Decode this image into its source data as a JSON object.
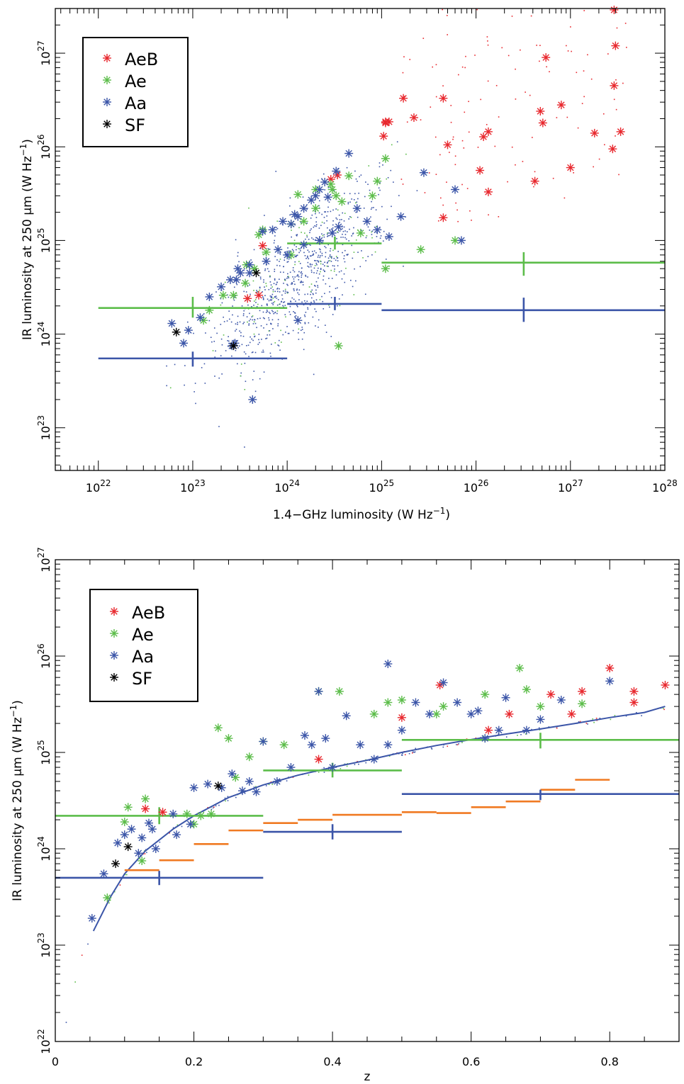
{
  "chart_data": [
    {
      "type": "scatter",
      "panel": "top",
      "xlabel": "1.4−GHz luminosity (W Hz",
      "xlabel_sup": "−1",
      "xlabel_end": ")",
      "ylabel": "IR luminosity at 250 μm (W Hz",
      "ylabel_sup": "−1",
      "ylabel_end": ")",
      "x_scale": "log",
      "y_scale": "log",
      "xlim": [
        3.5e+21,
        1e+28
      ],
      "ylim": [
        3.5e+22,
        3e+27
      ],
      "x_ticks": [
        {
          "base": "10",
          "exp": "22",
          "v": 1e+22
        },
        {
          "base": "10",
          "exp": "23",
          "v": 1e+23
        },
        {
          "base": "10",
          "exp": "24",
          "v": 1e+24
        },
        {
          "base": "10",
          "exp": "25",
          "v": 1e+25
        },
        {
          "base": "10",
          "exp": "26",
          "v": 1e+26
        },
        {
          "base": "10",
          "exp": "27",
          "v": 1e+27
        },
        {
          "base": "10",
          "exp": "28",
          "v": 1e+28
        }
      ],
      "y_ticks": [
        {
          "base": "10",
          "exp": "23",
          "v": 1e+23
        },
        {
          "base": "10",
          "exp": "24",
          "v": 1e+24
        },
        {
          "base": "10",
          "exp": "25",
          "v": 1e+25
        },
        {
          "base": "10",
          "exp": "26",
          "v": 1e+26
        },
        {
          "base": "10",
          "exp": "27",
          "v": 1e+27
        }
      ],
      "legend_position": "top-left",
      "legend": [
        {
          "label": "AeB",
          "color": "#e8282e"
        },
        {
          "label": "Ae",
          "color": "#5cbd4a"
        },
        {
          "label": "Aa",
          "color": "#3b55a8"
        },
        {
          "label": "SF",
          "color": "#000000"
        }
      ],
      "series": [
        {
          "name": "AeB",
          "color": "#e8282e",
          "x": [
            2.9e+27,
            3e+27,
            5.5e+26,
            2.9e+27,
            1.7e+25,
            4.5e+25,
            1.2e+25,
            1.1e+25,
            2.2e+25,
            1.1e+25,
            4.8e+26,
            8e+26,
            1.35e+26,
            1.8e+27,
            5.1e+26,
            3.4e+27,
            5e+25,
            1.2e+26,
            1.05e+25,
            2.8e+27,
            2.9e+24,
            3.4e+24,
            1.1e+26,
            1e+27,
            4.2e+26,
            1.35e+26,
            4.5e+25,
            5.5e+23,
            3.8e+23,
            5e+23
          ],
          "y": [
            2.9e+27,
            1.2e+27,
            9e+26,
            4.5e+26,
            3.3e+26,
            3.3e+26,
            1.85e+26,
            1.85e+26,
            2.05e+26,
            1.8e+26,
            2.4e+26,
            2.8e+26,
            1.45e+26,
            1.4e+26,
            1.8e+26,
            1.45e+26,
            1.05e+26,
            1.28e+26,
            1.3e+26,
            9.5e+25,
            4.5e+25,
            5e+25,
            5.6e+25,
            6e+25,
            4.3e+25,
            3.3e+25,
            1.75e+25,
            8.8e+24,
            2.4e+24,
            2.6e+24
          ]
        },
        {
          "name": "Ae",
          "color": "#5cbd4a",
          "x": [
            1.1e+25,
            9e+24,
            4.5e+24,
            3.3e+24,
            2.9e+24,
            1.3e+24,
            2e+24,
            1.1e+25,
            3e+24,
            3.8e+24,
            8e+24,
            6e+24,
            2.6e+25,
            6e+25,
            2e+24,
            1.5e+24,
            1.1e+24,
            5e+23,
            3.6e+23,
            4.5e+23,
            2.7e+23,
            1.1e+24,
            5.5e+23,
            6e+23,
            1.3e+23,
            3.5e+24,
            2.1e+23,
            3.7e+23,
            1.5e+23
          ],
          "y": [
            7.5e+25,
            4.3e+25,
            4.9e+25,
            3e+25,
            4e+25,
            3.1e+25,
            3.5e+25,
            5e+24,
            3.5e+25,
            2.6e+25,
            3e+25,
            1.2e+25,
            8e+24,
            1e+25,
            2.2e+25,
            1.6e+25,
            1.5e+25,
            1.15e+25,
            3.5e+24,
            5e+24,
            2.6e+24,
            7e+24,
            1.3e+25,
            7.5e+24,
            1.4e+24,
            7.5e+23,
            2.6e+24,
            5.5e+24,
            1.8e+24
          ]
        },
        {
          "name": "Aa",
          "color": "#3b55a8",
          "x": [
            4.5e+24,
            3.3e+24,
            2.5e+24,
            2.2e+24,
            2e+24,
            1.8e+24,
            1.5e+24,
            1.3e+24,
            1.1e+24,
            3e+24,
            5.5e+24,
            7e+24,
            9e+24,
            1.6e+25,
            2.8e+25,
            6e+25,
            7e+25,
            1.2e+25,
            8e+23,
            6e+23,
            4e+23,
            3e+23,
            2.5e+23,
            2e+23,
            1.5e+23,
            1.2e+23,
            9e+22,
            8e+22,
            2.8e+23,
            4.3e+23,
            6e+22,
            1.5e+24,
            2.2e+24,
            1e+24,
            7e+23,
            5.5e+23,
            9e+23,
            1.2e+24,
            2.7e+24,
            3.5e+24,
            1.3e+24,
            4e+23,
            3.2e+23,
            2.6e+23,
            2.9e+23
          ],
          "y": [
            8.5e+25,
            5.5e+25,
            4.2e+25,
            3.5e+25,
            3e+25,
            2.7e+25,
            2.2e+25,
            1.8e+25,
            1.5e+25,
            1.2e+25,
            2.2e+25,
            1.6e+25,
            1.3e+25,
            1.8e+25,
            5.3e+25,
            3.5e+25,
            1e+25,
            1.1e+25,
            8e+24,
            6e+24,
            4.5e+24,
            5e+24,
            3.8e+24,
            3.2e+24,
            2.5e+24,
            1.5e+24,
            1.1e+24,
            8e+23,
            8e+23,
            2e+23,
            1.3e+24,
            9e+24,
            1e+25,
            7e+24,
            1.3e+25,
            1.25e+25,
            1.6e+25,
            1.9e+25,
            2.9e+25,
            1.4e+25,
            1.4e+24,
            5.5e+24,
            4.5e+24,
            7.5e+23,
            3.8e+24
          ]
        },
        {
          "name": "SF",
          "color": "#000000",
          "x": [
            4.7e+23,
            6.7e+22,
            2.7e+23
          ],
          "y": [
            4.5e+24,
            1.05e+24,
            7.5e+23
          ]
        }
      ],
      "bins": [
        {
          "color": "#5cbd4a",
          "x": [
            1e+22,
            1e+24
          ],
          "xc": 1e+23,
          "y": 1.9e+24,
          "yerr": [
            1.5e+24,
            2.5e+24
          ]
        },
        {
          "color": "#5cbd4a",
          "x": [
            1e+24,
            1e+25
          ],
          "xc": 3.2e+24,
          "y": 9.3e+24,
          "yerr": [
            8e+24,
            1.1e+25
          ]
        },
        {
          "color": "#5cbd4a",
          "x": [
            1e+25,
            1e+28
          ],
          "xc": 3.2e+26,
          "y": 5.8e+24,
          "yerr": [
            4.2e+24,
            7.5e+24
          ]
        },
        {
          "color": "#3b55a8",
          "x": [
            1e+22,
            1e+24
          ],
          "xc": 1e+23,
          "y": 5.5e+23,
          "yerr": [
            4.5e+23,
            6.5e+23
          ]
        },
        {
          "color": "#3b55a8",
          "x": [
            1e+24,
            1e+25
          ],
          "xc": 3.2e+24,
          "y": 2.1e+24,
          "yerr": [
            1.8e+24,
            2.5e+24
          ]
        },
        {
          "color": "#3b55a8",
          "x": [
            1e+25,
            1e+28
          ],
          "xc": 3.2e+26,
          "y": 1.8e+24,
          "yerr": [
            1.35e+24,
            2.45e+24
          ]
        }
      ]
    },
    {
      "type": "scatter",
      "panel": "bottom",
      "xlabel": "z",
      "ylabel": "IR luminosity at 250 μm (W Hz",
      "ylabel_sup": "−1",
      "ylabel_end": ")",
      "x_scale": "linear",
      "y_scale": "log",
      "xlim": [
        0,
        0.9
      ],
      "ylim": [
        1e+22,
        1e+27
      ],
      "x_ticks": [
        {
          "label": "0",
          "v": 0
        },
        {
          "label": "0.2",
          "v": 0.2
        },
        {
          "label": "0.4",
          "v": 0.4
        },
        {
          "label": "0.6",
          "v": 0.6
        },
        {
          "label": "0.8",
          "v": 0.8
        }
      ],
      "y_ticks": [
        {
          "base": "10",
          "exp": "22",
          "v": 1e+22
        },
        {
          "base": "10",
          "exp": "23",
          "v": 1e+23
        },
        {
          "base": "10",
          "exp": "24",
          "v": 1e+24
        },
        {
          "base": "10",
          "exp": "25",
          "v": 1e+25
        },
        {
          "base": "10",
          "exp": "26",
          "v": 1e+26
        },
        {
          "base": "10",
          "exp": "27",
          "v": 1e+27
        }
      ],
      "legend_position": "top-left",
      "legend": [
        {
          "label": "AeB",
          "color": "#e8282e"
        },
        {
          "label": "Ae",
          "color": "#5cbd4a"
        },
        {
          "label": "Aa",
          "color": "#3b55a8"
        },
        {
          "label": "SF",
          "color": "#000000"
        }
      ],
      "series": [
        {
          "name": "AeB",
          "color": "#e8282e",
          "x": [
            0.13,
            0.155,
            0.38,
            0.5,
            0.555,
            0.625,
            0.655,
            0.715,
            0.745,
            0.76,
            0.8,
            0.835,
            0.835,
            0.88
          ],
          "y": [
            2.6e+24,
            2.4e+24,
            8.5e+24,
            2.3e+25,
            5e+25,
            1.7e+25,
            2.5e+25,
            4e+25,
            2.5e+25,
            4.3e+25,
            7.5e+25,
            4.3e+25,
            3.3e+25,
            5e+25
          ]
        },
        {
          "name": "Ae",
          "color": "#5cbd4a",
          "x": [
            0.075,
            0.1,
            0.105,
            0.125,
            0.13,
            0.19,
            0.2,
            0.21,
            0.225,
            0.235,
            0.25,
            0.26,
            0.28,
            0.3,
            0.33,
            0.38,
            0.41,
            0.46,
            0.48,
            0.5,
            0.55,
            0.56,
            0.62,
            0.67,
            0.68,
            0.7,
            0.76
          ],
          "y": [
            3.1e+23,
            1.9e+24,
            2.7e+24,
            7.5e+23,
            3.3e+24,
            2.3e+24,
            1.8e+24,
            2.2e+24,
            2.3e+24,
            1.8e+25,
            1.4e+25,
            5.5e+24,
            9e+24,
            1.3e+25,
            1.2e+25,
            4.3e+25,
            4.3e+25,
            2.5e+25,
            3.3e+25,
            3.5e+25,
            2.5e+25,
            3e+25,
            4e+25,
            7.5e+25,
            4.5e+25,
            3e+25,
            3.2e+25
          ]
        },
        {
          "name": "Aa",
          "color": "#3b55a8",
          "x": [
            0.053,
            0.07,
            0.09,
            0.1,
            0.11,
            0.12,
            0.125,
            0.135,
            0.14,
            0.145,
            0.17,
            0.175,
            0.195,
            0.2,
            0.22,
            0.24,
            0.255,
            0.27,
            0.28,
            0.29,
            0.3,
            0.32,
            0.34,
            0.36,
            0.37,
            0.38,
            0.39,
            0.4,
            0.42,
            0.44,
            0.46,
            0.48,
            0.5,
            0.52,
            0.54,
            0.56,
            0.58,
            0.6,
            0.62,
            0.64,
            0.65,
            0.68,
            0.7,
            0.73,
            0.8,
            0.48,
            0.61
          ],
          "y": [
            1.9e+23,
            5.5e+23,
            1.15e+24,
            1.4e+24,
            1.6e+24,
            9e+23,
            1.3e+24,
            1.85e+24,
            1.6e+24,
            1e+24,
            2.3e+24,
            1.4e+24,
            1.8e+24,
            4.3e+24,
            4.7e+24,
            4.3e+24,
            6e+24,
            4e+24,
            5e+24,
            3.9e+24,
            1.3e+25,
            5e+24,
            7e+24,
            1.5e+25,
            1.2e+25,
            4.3e+25,
            1.4e+25,
            7e+24,
            2.4e+25,
            1.2e+25,
            8.5e+24,
            8.3e+25,
            1.7e+25,
            3.3e+25,
            2.5e+25,
            5.3e+25,
            3.3e+25,
            2.5e+25,
            1.4e+25,
            1.7e+25,
            3.7e+25,
            1.7e+25,
            2.2e+25,
            3.5e+25,
            5.5e+25,
            1.2e+25,
            2.7e+25
          ]
        },
        {
          "name": "SF",
          "color": "#000000",
          "x": [
            0.087,
            0.105,
            0.235
          ],
          "y": [
            7e+23,
            1.05e+24,
            4.5e+24
          ]
        }
      ],
      "curve": {
        "color": "#3b55a8",
        "x": [
          0.055,
          0.08,
          0.1,
          0.13,
          0.17,
          0.2,
          0.25,
          0.3,
          0.35,
          0.4,
          0.45,
          0.5,
          0.55,
          0.6,
          0.65,
          0.7,
          0.75,
          0.8,
          0.85,
          0.88
        ],
        "y": [
          1.4e+23,
          3.2e+23,
          5.5e+23,
          9.5e+23,
          1.6e+24,
          2.2e+24,
          3.4e+24,
          4.6e+24,
          5.8e+24,
          7e+24,
          8.3e+24,
          1e+25,
          1.18e+25,
          1.36e+25,
          1.55e+25,
          1.75e+25,
          2e+25,
          2.3e+25,
          2.6e+25,
          3e+25
        ]
      },
      "bins": [
        {
          "color": "#5cbd4a",
          "x": [
            0,
            0.3
          ],
          "xc": 0.15,
          "y": 2.2e+24,
          "yerr": [
            1.8e+24,
            2.7e+24
          ]
        },
        {
          "color": "#5cbd4a",
          "x": [
            0.3,
            0.5
          ],
          "xc": 0.4,
          "y": 6.5e+24,
          "yerr": [
            5.5e+24,
            7.8e+24
          ]
        },
        {
          "color": "#5cbd4a",
          "x": [
            0.5,
            0.9
          ],
          "xc": 0.7,
          "y": 1.35e+25,
          "yerr": [
            1.1e+25,
            1.6e+25
          ]
        },
        {
          "color": "#3b55a8",
          "x": [
            0,
            0.3
          ],
          "xc": 0.15,
          "y": 5e+23,
          "yerr": [
            4.2e+23,
            5.9e+23
          ]
        },
        {
          "color": "#3b55a8",
          "x": [
            0.3,
            0.5
          ],
          "xc": 0.4,
          "y": 1.5e+24,
          "yerr": [
            1.25e+24,
            1.8e+24
          ]
        },
        {
          "color": "#3b55a8",
          "x": [
            0.5,
            0.9
          ],
          "xc": 0.7,
          "y": 3.7e+24,
          "yerr": [
            3.2e+24,
            4.1e+24
          ]
        }
      ],
      "limits": {
        "color": "#f07a22",
        "x": [
          [
            0.1,
            0.15
          ],
          [
            0.15,
            0.2
          ],
          [
            0.2,
            0.25
          ],
          [
            0.25,
            0.3
          ],
          [
            0.3,
            0.35
          ],
          [
            0.35,
            0.4
          ],
          [
            0.4,
            0.45
          ],
          [
            0.45,
            0.5
          ],
          [
            0.5,
            0.55
          ],
          [
            0.55,
            0.6
          ],
          [
            0.6,
            0.65
          ],
          [
            0.65,
            0.7
          ],
          [
            0.7,
            0.75
          ],
          [
            0.75,
            0.8
          ]
        ],
        "y": [
          6e+23,
          7.6e+23,
          1.12e+24,
          1.55e+24,
          1.85e+24,
          2e+24,
          2.25e+24,
          2.25e+24,
          2.4e+24,
          2.35e+24,
          2.7e+24,
          3.1e+24,
          4.1e+24,
          5.2e+24
        ]
      }
    }
  ]
}
